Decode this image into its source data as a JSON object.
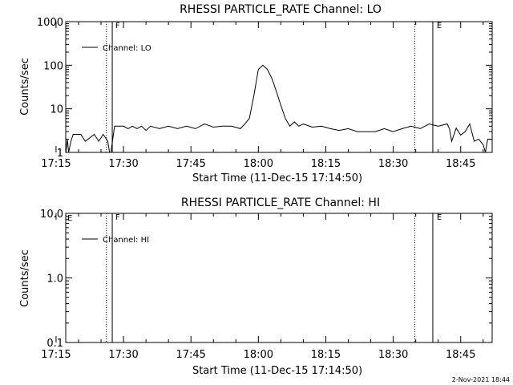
{
  "footer": {
    "timestamp": "2-Nov-2021 18:44"
  },
  "chart_data": [
    {
      "type": "line",
      "title": "RHESSI PARTICLE_RATE Channel: LO",
      "xlabel": "Start Time (11-Dec-15 17:14:50)",
      "ylabel": "Counts/sec",
      "y_scale": "log",
      "ylim": [
        1,
        1000
      ],
      "y_ticks": [
        "1",
        "10",
        "100",
        "1000"
      ],
      "x_range_minutes": [
        17.15,
        112
      ],
      "x_ticks": [
        "17:15",
        "17:30",
        "17:45",
        "18:00",
        "18:15",
        "18:30",
        "18:45"
      ],
      "legend": "top-left",
      "grid": false,
      "series": [
        {
          "name": "Channel: LO",
          "x": [
            17.2,
            17.5,
            17.8,
            18.3,
            18.8,
            20.5,
            21.5,
            23.5,
            24.5,
            25.5,
            26.5,
            26.9,
            27.2,
            28,
            30,
            31,
            32,
            33,
            34,
            35,
            36,
            38,
            40,
            42,
            44,
            46,
            48,
            50,
            52,
            54,
            56,
            57,
            58,
            59,
            60,
            61,
            62,
            63,
            64,
            65,
            66,
            67,
            68,
            69,
            70,
            72,
            74,
            76,
            78,
            80,
            82,
            84,
            86,
            88,
            90,
            92,
            94,
            96,
            98,
            100,
            102,
            102.5,
            103,
            104,
            105,
            106,
            107,
            108,
            109,
            110,
            110.5,
            111,
            112
          ],
          "values": [
            1,
            2,
            0.7,
            1.8,
            2.6,
            2.6,
            1.8,
            2.6,
            1.8,
            2.6,
            1.8,
            1.0,
            0.8,
            4,
            4,
            3.5,
            4,
            3.5,
            4,
            3.2,
            4,
            3.5,
            4,
            3.5,
            4,
            3.5,
            4.5,
            3.8,
            4,
            4,
            3.5,
            4.5,
            6,
            20,
            80,
            100,
            80,
            50,
            25,
            12,
            6,
            4,
            5,
            4,
            4.5,
            3.8,
            4,
            3.5,
            3.2,
            3.5,
            3,
            3,
            3,
            3.5,
            3,
            3.5,
            4,
            3.5,
            4.5,
            4,
            4.5,
            3.5,
            1.8,
            3.6,
            2.5,
            3,
            4.5,
            1.8,
            2,
            1.5,
            0.8,
            2,
            2
          ]
        }
      ]
    },
    {
      "type": "line",
      "title": "RHESSI PARTICLE_RATE Channel: HI",
      "xlabel": "Start Time (11-Dec-15 17:14:50)",
      "ylabel": "Counts/sec",
      "y_scale": "log",
      "ylim": [
        0.1,
        10
      ],
      "y_ticks": [
        "0.1",
        "1.0",
        "10.0"
      ],
      "x_range_minutes": [
        17.15,
        112
      ],
      "x_ticks": [
        "17:15",
        "17:30",
        "17:45",
        "18:00",
        "18:15",
        "18:30",
        "18:45"
      ],
      "legend": "top-left",
      "grid": false,
      "series": [
        {
          "name": "Channel: HI",
          "x": [],
          "values": []
        }
      ]
    }
  ],
  "markers": {
    "dotted_minutes": [
      26.2,
      94.8
    ],
    "solid_minutes": [
      27.5,
      98.8
    ],
    "labels": [
      {
        "text": "F",
        "minute": 28.0
      },
      {
        "text": "E",
        "minute": 99.5
      }
    ],
    "top_left_label_hi": "E"
  }
}
